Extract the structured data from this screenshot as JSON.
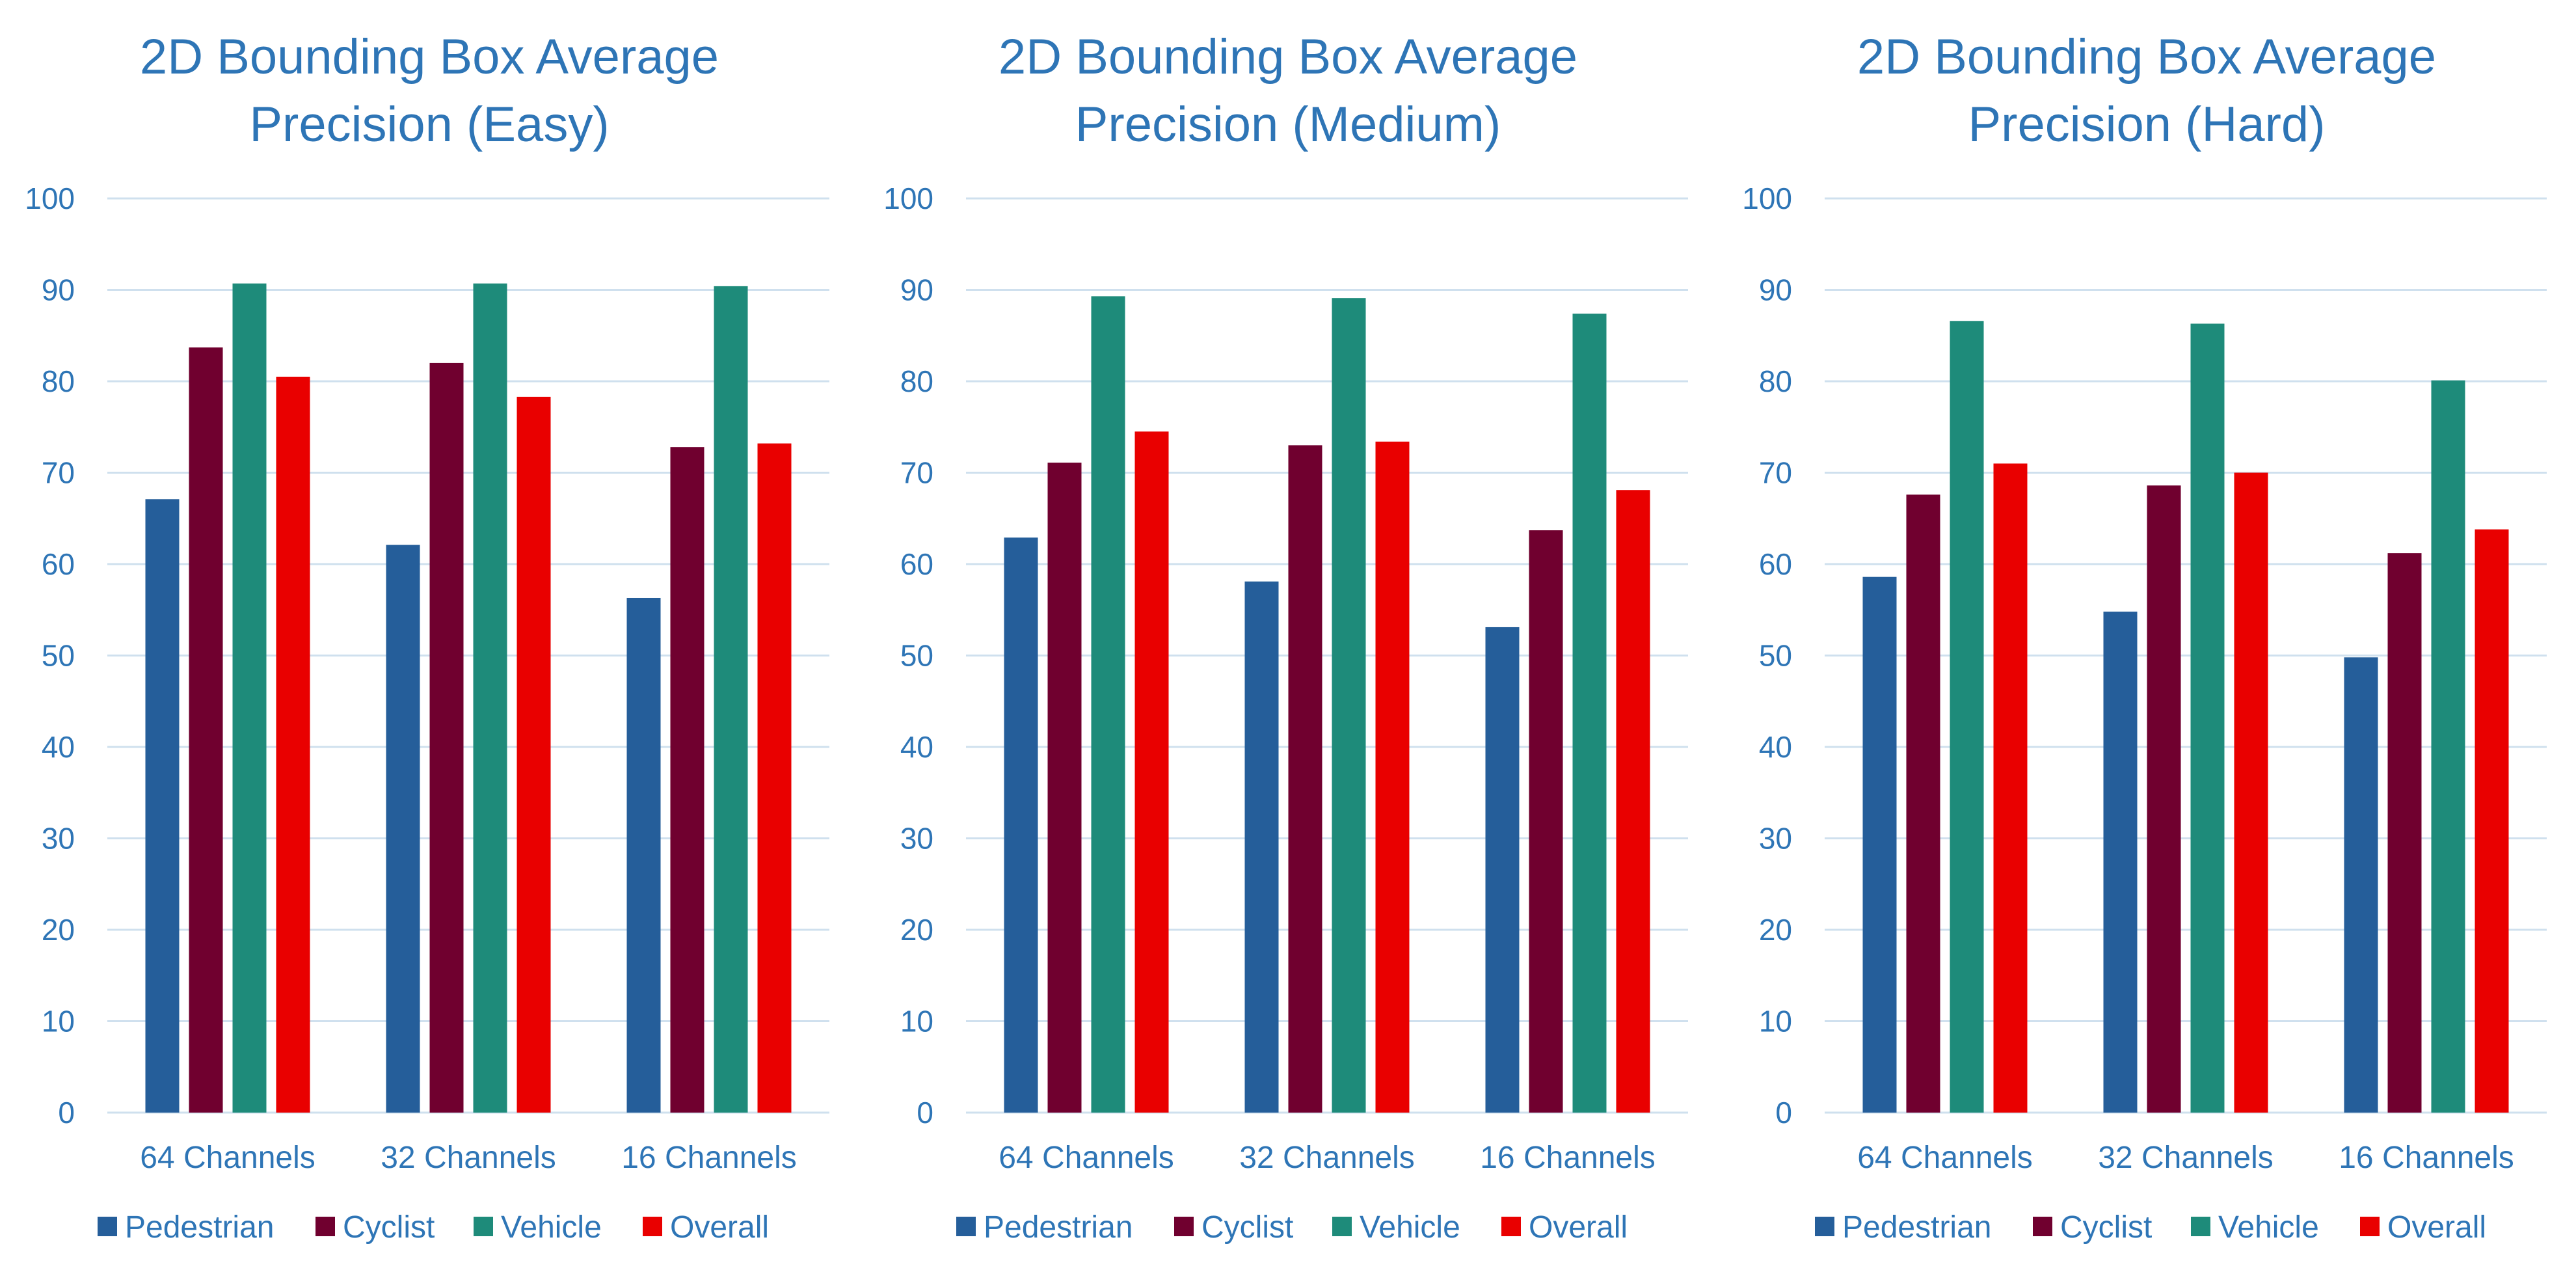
{
  "chart_data": [
    {
      "type": "bar",
      "title": [
        "2D Bounding Box Average",
        "Precision (Easy)"
      ],
      "categories": [
        "64 Channels",
        "32 Channels",
        "16 Channels"
      ],
      "series": [
        {
          "name": "Pedestrian",
          "color": "#255e9a",
          "values": [
            67.1,
            62.1,
            56.3
          ]
        },
        {
          "name": "Cyclist",
          "color": "#70002f",
          "values": [
            83.7,
            82.0,
            72.8
          ]
        },
        {
          "name": "Vehicle",
          "color": "#1e8b7a",
          "values": [
            90.7,
            90.7,
            90.4
          ]
        },
        {
          "name": "Overall",
          "color": "#e90000",
          "values": [
            80.5,
            78.3,
            73.2
          ]
        }
      ],
      "ylim": [
        0,
        100
      ],
      "yticks": [
        "0",
        "10",
        "20",
        "30",
        "40",
        "50",
        "60",
        "70",
        "80",
        "90",
        "100"
      ],
      "grid": true,
      "legend_position": "bottom"
    },
    {
      "type": "bar",
      "title": [
        "2D Bounding Box Average",
        "Precision (Medium)"
      ],
      "categories": [
        "64 Channels",
        "32 Channels",
        "16 Channels"
      ],
      "series": [
        {
          "name": "Pedestrian",
          "color": "#255e9a",
          "values": [
            62.9,
            58.1,
            53.1
          ]
        },
        {
          "name": "Cyclist",
          "color": "#70002f",
          "values": [
            71.1,
            73.0,
            63.7
          ]
        },
        {
          "name": "Vehicle",
          "color": "#1e8b7a",
          "values": [
            89.3,
            89.1,
            87.4
          ]
        },
        {
          "name": "Overall",
          "color": "#e90000",
          "values": [
            74.5,
            73.4,
            68.1
          ]
        }
      ],
      "ylim": [
        0,
        100
      ],
      "yticks": [
        "0",
        "10",
        "20",
        "30",
        "40",
        "50",
        "60",
        "70",
        "80",
        "90",
        "100"
      ],
      "grid": true,
      "legend_position": "bottom"
    },
    {
      "type": "bar",
      "title": [
        "2D Bounding Box Average",
        "Precision (Hard)"
      ],
      "categories": [
        "64 Channels",
        "32 Channels",
        "16 Channels"
      ],
      "series": [
        {
          "name": "Pedestrian",
          "color": "#255e9a",
          "values": [
            58.6,
            54.8,
            49.8
          ]
        },
        {
          "name": "Cyclist",
          "color": "#70002f",
          "values": [
            67.6,
            68.6,
            61.2
          ]
        },
        {
          "name": "Vehicle",
          "color": "#1e8b7a",
          "values": [
            86.6,
            86.3,
            80.1
          ]
        },
        {
          "name": "Overall",
          "color": "#e90000",
          "values": [
            71.0,
            70.0,
            63.8
          ]
        }
      ],
      "ylim": [
        0,
        100
      ],
      "yticks": [
        "0",
        "10",
        "20",
        "30",
        "40",
        "50",
        "60",
        "70",
        "80",
        "90",
        "100"
      ],
      "grid": true,
      "legend_position": "bottom"
    }
  ]
}
